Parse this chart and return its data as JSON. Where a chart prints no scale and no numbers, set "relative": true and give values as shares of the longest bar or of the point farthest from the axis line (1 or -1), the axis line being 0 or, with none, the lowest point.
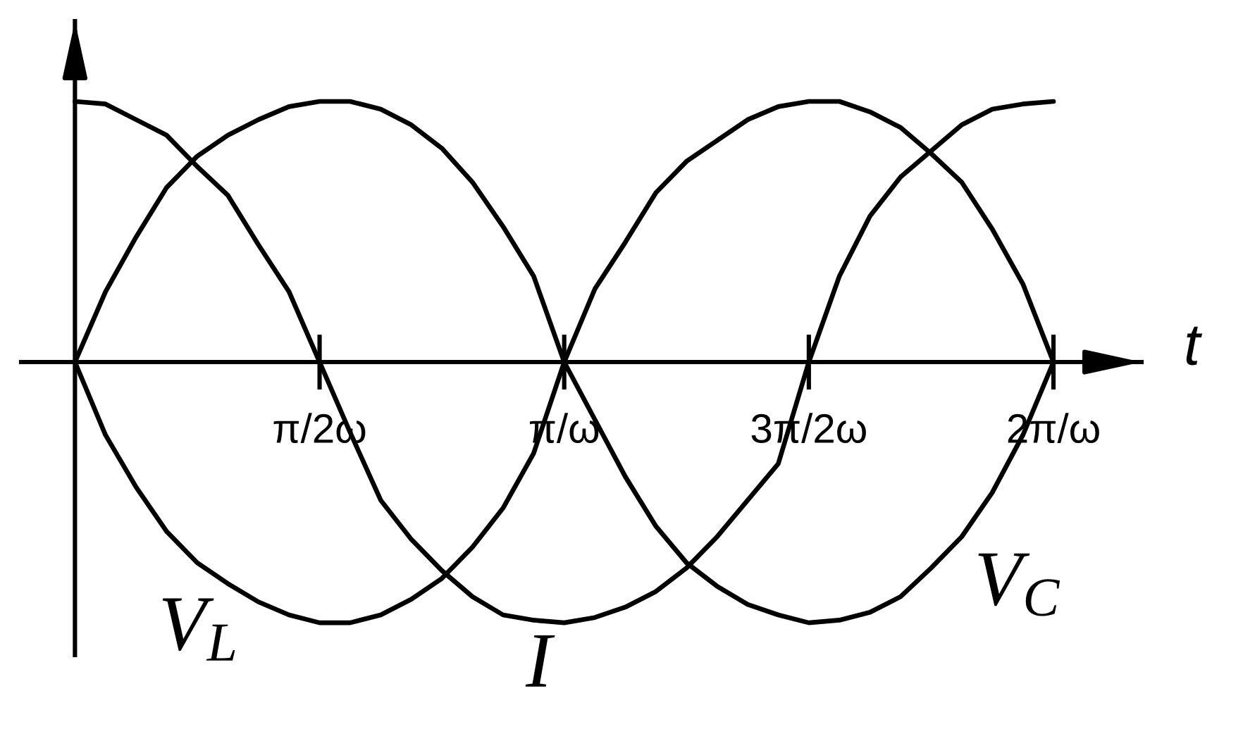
{
  "chart_data": {
    "type": "line",
    "relative": true,
    "xlabel": "t",
    "categories": [
      null,
      null,
      null,
      null,
      null,
      null,
      null,
      null,
      "π/2ω",
      null,
      null,
      null,
      null,
      null,
      null,
      null,
      "π/ω",
      null,
      null,
      null,
      null,
      null,
      null,
      null,
      "3π/2ω",
      null,
      null,
      null,
      null,
      null,
      null,
      null,
      "2π/ω"
    ],
    "series": [
      {
        "name": "V$_{L}$",
        "color": "#000000",
        "values": [
          0,
          -0.28,
          -0.48,
          -0.65,
          -0.77,
          -0.85,
          -0.92,
          -0.97,
          -1.0,
          -1.0,
          -0.97,
          -0.91,
          -0.83,
          -0.71,
          -0.56,
          -0.35,
          0,
          0.28,
          0.46,
          0.65,
          0.77,
          0.85,
          0.93,
          0.98,
          1.0,
          1.0,
          0.96,
          0.9,
          0.8,
          0.69,
          0.51,
          0.3,
          0
        ]
      },
      {
        "name": "I",
        "color": "#000000",
        "values": [
          1.0,
          0.99,
          0.93,
          0.87,
          0.75,
          0.64,
          0.45,
          0.27,
          0,
          -0.27,
          -0.53,
          -0.68,
          -0.8,
          -0.9,
          -0.97,
          -0.99,
          -1.0,
          -0.98,
          -0.94,
          -0.88,
          -0.79,
          -0.67,
          -0.53,
          -0.39,
          0,
          0.33,
          0.56,
          0.71,
          0.81,
          0.91,
          0.97,
          0.99,
          1.0
        ]
      },
      {
        "name": "V$_{C}$",
        "color": "#000000",
        "values": [
          0,
          0.27,
          0.48,
          0.67,
          0.79,
          0.87,
          0.93,
          0.98,
          1.0,
          1.0,
          0.97,
          0.91,
          0.82,
          0.69,
          0.52,
          0.33,
          0,
          -0.22,
          -0.44,
          -0.63,
          -0.77,
          -0.86,
          -0.93,
          -0.97,
          -1.0,
          -0.99,
          -0.96,
          -0.9,
          -0.79,
          -0.67,
          -0.5,
          -0.28,
          0
        ]
      }
    ]
  }
}
